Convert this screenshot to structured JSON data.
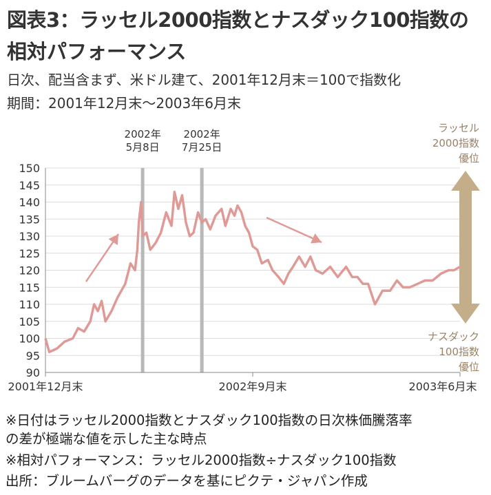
{
  "title_line1": "図表3：ラッセル2000指数とナスダック100指数の",
  "title_line2": "相対パフォーマンス",
  "subtitle_line1": "日次、配当含まず、米ドル建て、2001年12月末＝100で指数化",
  "subtitle_line2": "期間：2001年12月末～2003年6月末",
  "notes": [
    "※日付はラッセル2000指数とナスダック100指数の日次株価騰落率",
    "の差が極端な値を示した主な時点",
    "※相対パフォーマンス：ラッセル2000指数÷ナスダック100指数",
    "出所：ブルームバーグのデータを基にピクテ・ジャパン作成"
  ],
  "colors": {
    "line": "#e09a96",
    "marker": "#b8b8b8",
    "side_arrow": "#c4ae8a"
  },
  "chart_data": {
    "type": "line",
    "ylim": [
      90,
      150
    ],
    "yticks": [
      150,
      145,
      140,
      135,
      130,
      125,
      120,
      115,
      110,
      105,
      100,
      95,
      90
    ],
    "xlim": [
      "2001-12-31",
      "2003-06-30"
    ],
    "xtick_labels": [
      "2001年12月末",
      "2002年9月末",
      "2003年6月末"
    ],
    "xtick_dates": [
      "2001-12-31",
      "2002-09-30",
      "2003-06-30"
    ],
    "markers": [
      {
        "date": "2002-05-08",
        "label": [
          "2002年",
          "5月8日"
        ]
      },
      {
        "date": "2002-07-25",
        "label": [
          "2002年",
          "7月25日"
        ]
      }
    ],
    "side_top": [
      "ラッセル",
      "2000指数",
      "優位"
    ],
    "side_bottom": [
      "ナスダック",
      "100指数",
      "優位"
    ],
    "series": [
      {
        "x": [
          "2001-12-31",
          "2002-01-05",
          "2002-01-15",
          "2002-01-25",
          "2002-02-05",
          "2002-02-12",
          "2002-02-20",
          "2002-02-28",
          "2002-03-05",
          "2002-03-10",
          "2002-03-15",
          "2002-03-20",
          "2002-03-28",
          "2002-04-05",
          "2002-04-15",
          "2002-04-22",
          "2002-04-28",
          "2002-05-01",
          "2002-05-03",
          "2002-05-06",
          "2002-05-08",
          "2002-05-13",
          "2002-05-18",
          "2002-05-25",
          "2002-06-01",
          "2002-06-08",
          "2002-06-15",
          "2002-06-19",
          "2002-06-24",
          "2002-06-29",
          "2002-07-04",
          "2002-07-09",
          "2002-07-14",
          "2002-07-20",
          "2002-07-25",
          "2002-07-30",
          "2002-08-05",
          "2002-08-12",
          "2002-08-20",
          "2002-08-25",
          "2002-09-01",
          "2002-09-06",
          "2002-09-10",
          "2002-09-15",
          "2002-09-20",
          "2002-09-25",
          "2002-09-30",
          "2002-10-06",
          "2002-10-12",
          "2002-10-20",
          "2002-10-26",
          "2002-11-03",
          "2002-11-10",
          "2002-11-16",
          "2002-11-22",
          "2002-11-30",
          "2002-12-08",
          "2002-12-15",
          "2002-12-22",
          "2002-12-31",
          "2003-01-10",
          "2003-01-20",
          "2003-01-31",
          "2003-02-08",
          "2003-02-15",
          "2003-02-22",
          "2003-03-01",
          "2003-03-10",
          "2003-03-20",
          "2003-03-30",
          "2003-04-08",
          "2003-04-16",
          "2003-04-25",
          "2003-05-05",
          "2003-05-15",
          "2003-05-25",
          "2003-06-05",
          "2003-06-15",
          "2003-06-22",
          "2003-06-30"
        ],
        "values": [
          100,
          96,
          97,
          99,
          100,
          103,
          102,
          105,
          110,
          108,
          111,
          105,
          108,
          112,
          116,
          122,
          120,
          126,
          134,
          140,
          130,
          131,
          126,
          128,
          131,
          137,
          133,
          143,
          138,
          142,
          134,
          130,
          131,
          137,
          134,
          135,
          132,
          136,
          138,
          133,
          138,
          136,
          139,
          137,
          133,
          131,
          127,
          126,
          122,
          123,
          120,
          118,
          116,
          119,
          121,
          124,
          121,
          124,
          120,
          119,
          121,
          118,
          121,
          118,
          118,
          116,
          116,
          110,
          114,
          114,
          117,
          115,
          115,
          116,
          117,
          117,
          119,
          120,
          120,
          121
        ]
      }
    ]
  }
}
